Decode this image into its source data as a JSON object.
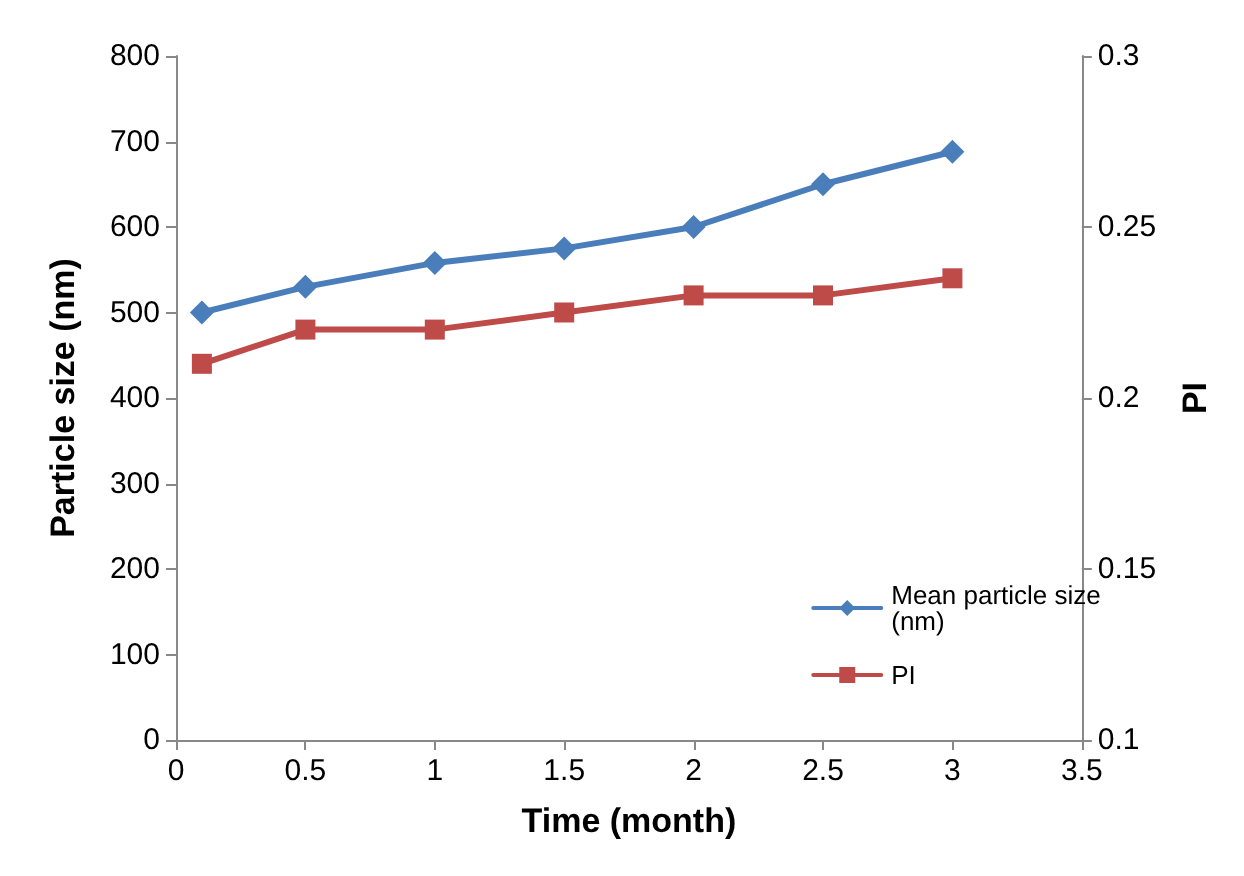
{
  "chart_data": {
    "type": "line",
    "xlabel": "Time (month)",
    "ylabel": "Particle size (nm)",
    "y2label": "PI",
    "x": [
      0.1,
      0.5,
      1,
      1.5,
      2,
      2.5,
      3
    ],
    "xlim": [
      0,
      3.5
    ],
    "xticks": [
      0,
      0.5,
      1,
      1.5,
      2,
      2.5,
      3,
      3.5
    ],
    "ylim": [
      0,
      800
    ],
    "yticks": [
      0,
      100,
      200,
      300,
      400,
      500,
      600,
      700,
      800
    ],
    "y2lim": [
      0.1,
      0.3
    ],
    "y2ticks": [
      0.1,
      0.15,
      0.2,
      0.25,
      0.3
    ],
    "grid": false,
    "legend": "bottom right",
    "line_style": "solid",
    "series": [
      {
        "name": "Mean particle size (nm)",
        "color": "#4a7ebb",
        "marker": "diamond",
        "values": [
          500,
          530,
          558,
          575,
          600,
          650,
          688
        ]
      },
      {
        "name": "PI",
        "color": "#be4b48",
        "marker": "square",
        "axis": "y2",
        "values": [
          0.21,
          0.22,
          0.22,
          0.225,
          0.23,
          0.23,
          0.235
        ]
      }
    ]
  }
}
